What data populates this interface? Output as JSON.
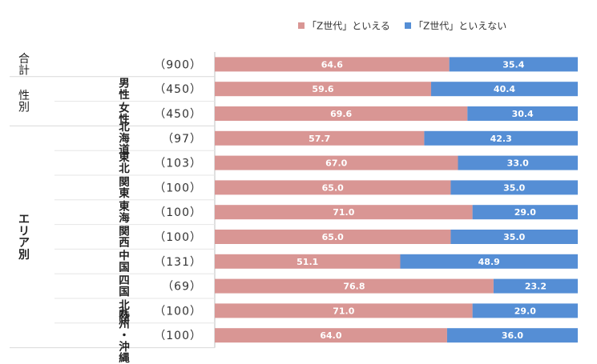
{
  "chart_data": {
    "type": "bar",
    "orientation": "horizontal-stacked-100",
    "legend_position": "top-right",
    "series": [
      {
        "name": "「Z世代」といえる",
        "color": "#d99694"
      },
      {
        "name": "「Z世代」といえない",
        "color": "#558ed5"
      }
    ],
    "groups": [
      {
        "label": "合計",
        "rows": [
          0
        ]
      },
      {
        "label": "性別",
        "rows": [
          1,
          2
        ]
      },
      {
        "label": "エリア別",
        "rows": [
          3,
          4,
          5,
          6,
          7,
          8,
          9,
          10,
          11
        ]
      }
    ],
    "rows": [
      {
        "label": "",
        "count": "（900）",
        "values": [
          64.6,
          35.4
        ],
        "labels": [
          "64.6",
          "35.4"
        ]
      },
      {
        "label": "男性",
        "count": "（450）",
        "values": [
          59.6,
          40.4
        ],
        "labels": [
          "59.6",
          "40.4"
        ]
      },
      {
        "label": "女性",
        "count": "（450）",
        "values": [
          69.6,
          30.4
        ],
        "labels": [
          "69.6",
          "30.4"
        ]
      },
      {
        "label": "北海道",
        "count": "（97）",
        "values": [
          57.7,
          42.3
        ],
        "labels": [
          "57.7",
          "42.3"
        ]
      },
      {
        "label": "東北",
        "count": "（103）",
        "values": [
          67.0,
          33.0
        ],
        "labels": [
          "67.0",
          "33.0"
        ]
      },
      {
        "label": "関東",
        "count": "（100）",
        "values": [
          65.0,
          35.0
        ],
        "labels": [
          "65.0",
          "35.0"
        ]
      },
      {
        "label": "東海",
        "count": "（100）",
        "values": [
          71.0,
          29.0
        ],
        "labels": [
          "71.0",
          "29.0"
        ]
      },
      {
        "label": "関西",
        "count": "（100）",
        "values": [
          65.0,
          35.0
        ],
        "labels": [
          "65.0",
          "35.0"
        ]
      },
      {
        "label": "中国",
        "count": "（131）",
        "values": [
          51.1,
          48.9
        ],
        "labels": [
          "51.1",
          "48.9"
        ]
      },
      {
        "label": "四国",
        "count": "（69）",
        "values": [
          76.8,
          23.2
        ],
        "labels": [
          "76.8",
          "23.2"
        ]
      },
      {
        "label": "北陸",
        "count": "（100）",
        "values": [
          71.0,
          29.0
        ],
        "labels": [
          "71.0",
          "29.0"
        ]
      },
      {
        "label": "九州・沖縄",
        "count": "（100）",
        "values": [
          64.0,
          36.0
        ],
        "labels": [
          "64.0",
          "36.0"
        ]
      }
    ]
  }
}
